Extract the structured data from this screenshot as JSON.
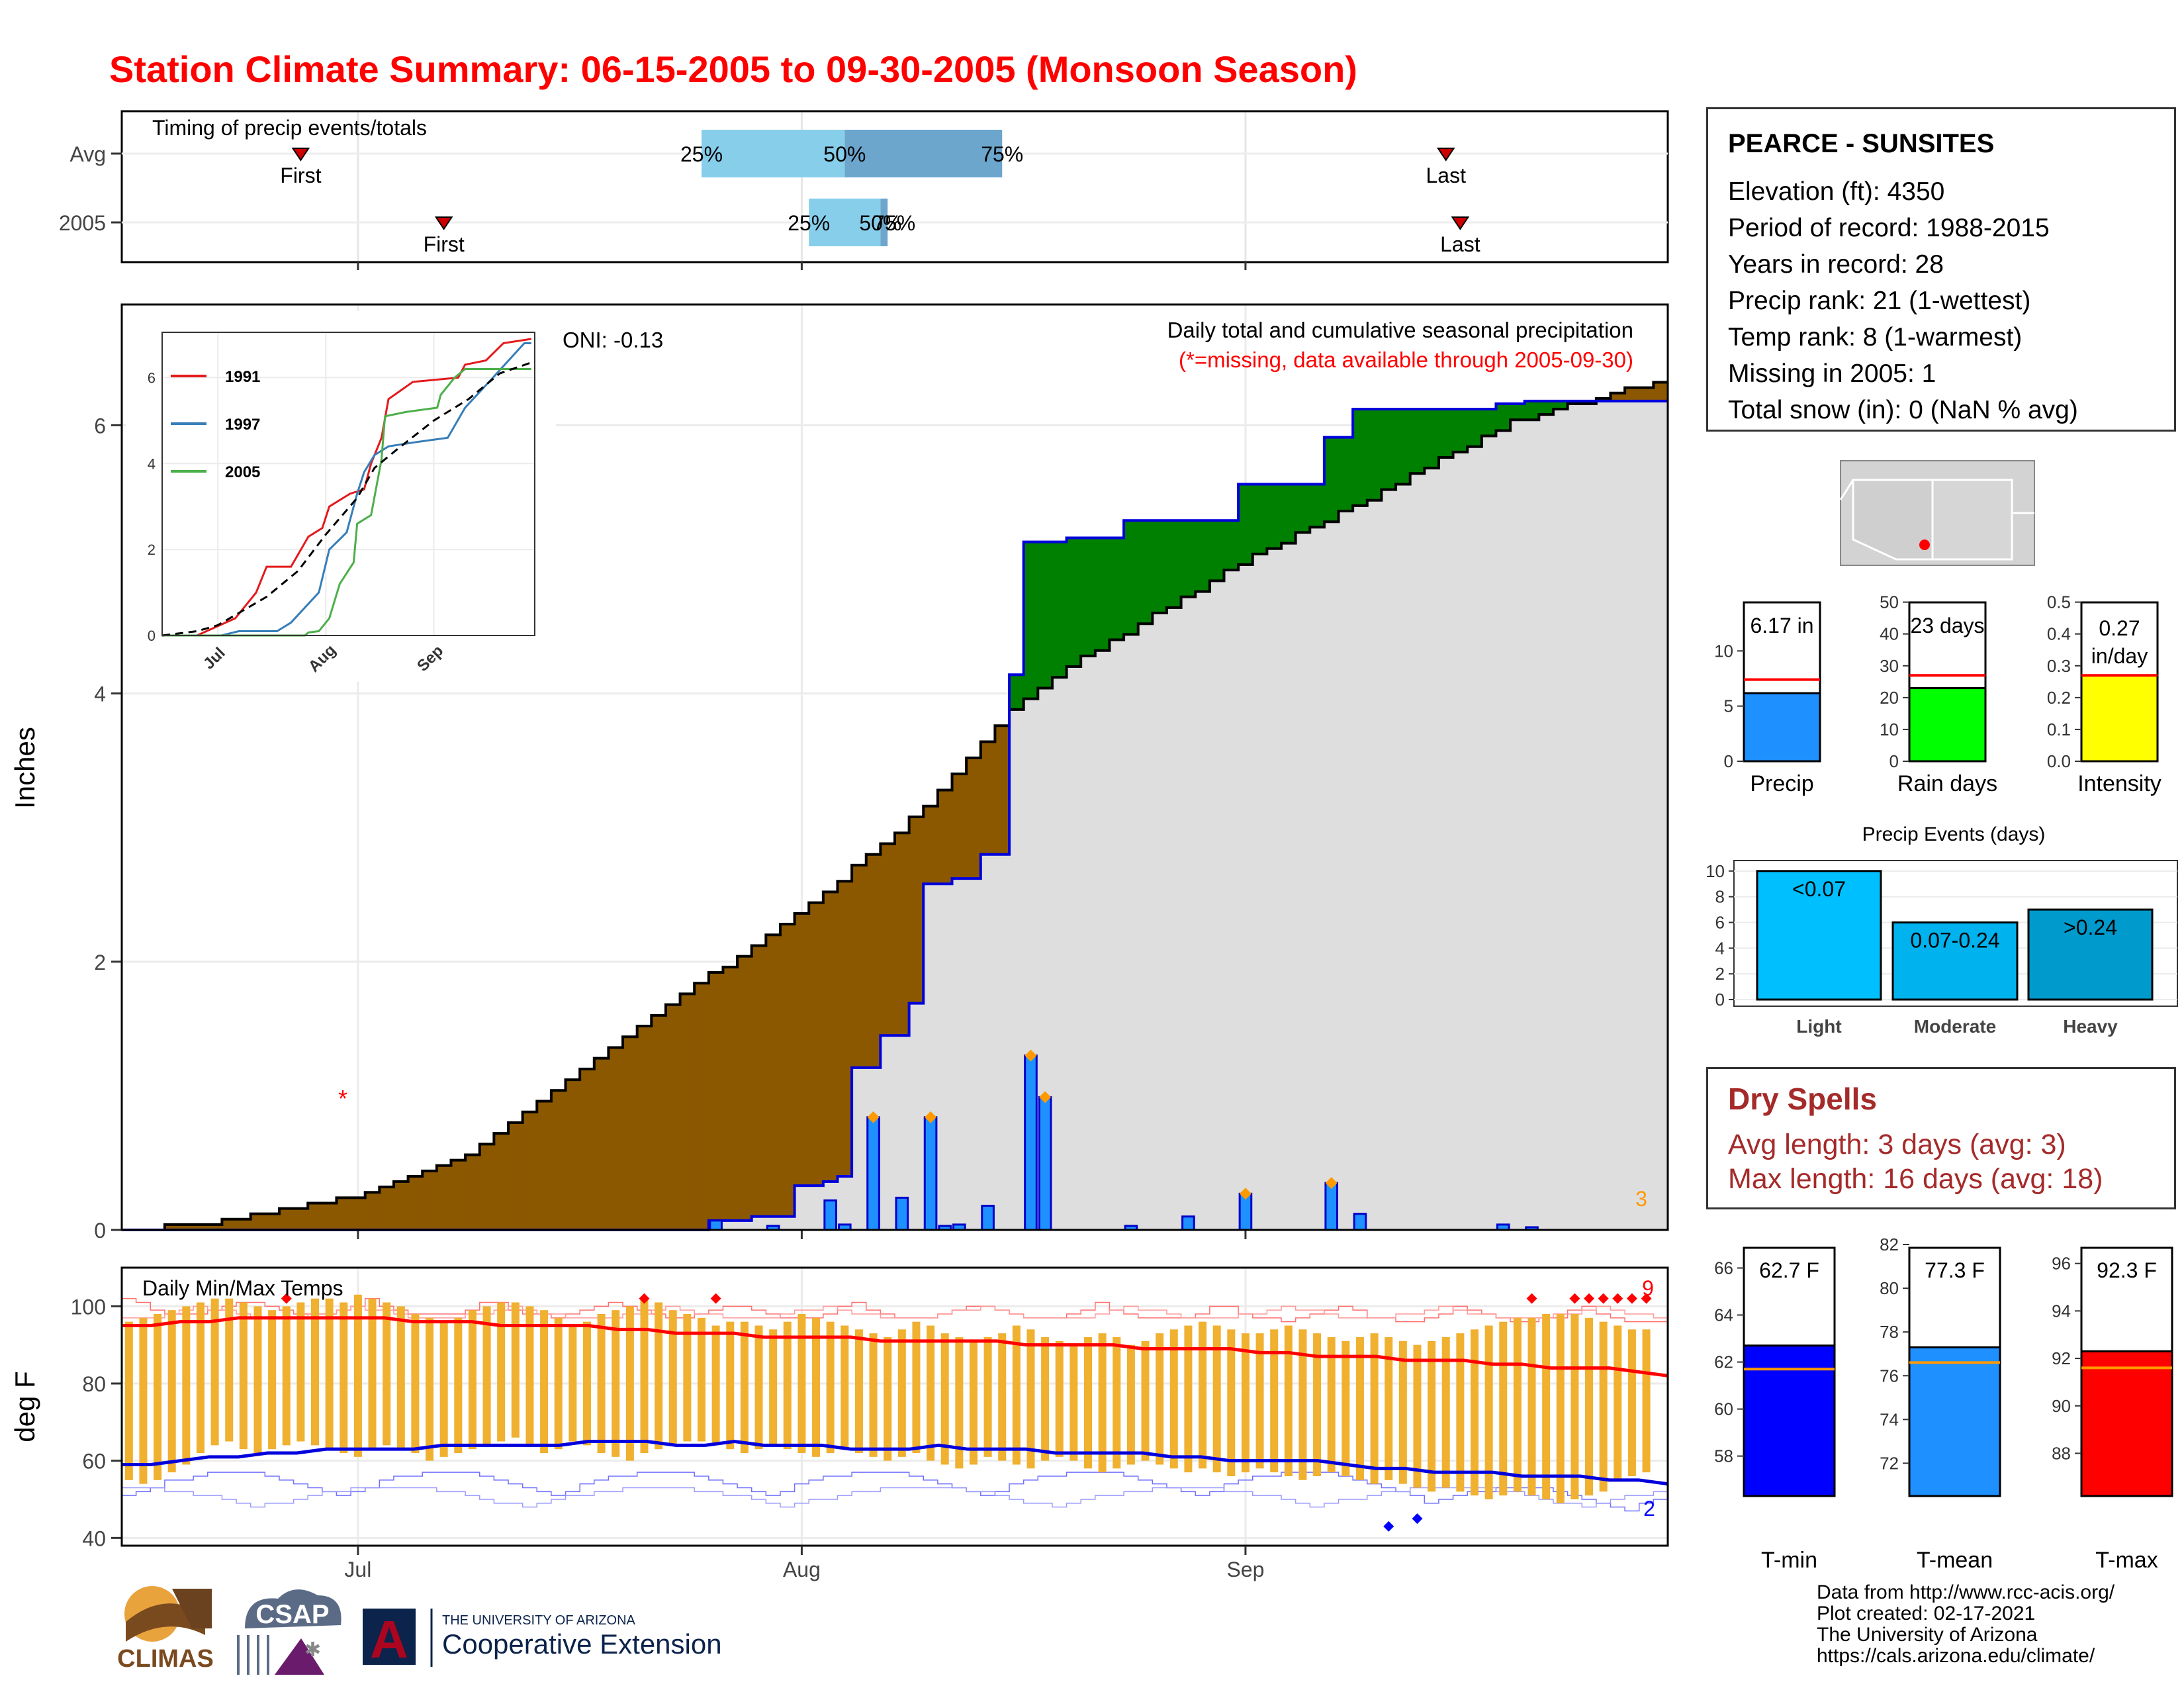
{
  "title": "Station Climate Summary: 06-15-2005 to 09-30-2005 (Monsoon Season)",
  "timing": {
    "label": "Timing of precip events/totals",
    "rows": [
      {
        "name": "Avg",
        "first_doy": 12,
        "last_doy": 92,
        "q25_doy": 40,
        "q50_doy": 50,
        "q75_doy": 61,
        "first_label": "First",
        "last_label": "Last",
        "p25": "25%",
        "p50": "50%",
        "p75": "75%"
      },
      {
        "name": "2005",
        "first_doy": 22,
        "last_doy": 93,
        "q25_doy": 47.5,
        "q50_doy": 52.5,
        "q75_doy": 53,
        "first_label": "First",
        "last_label": "Last",
        "p25": "25%",
        "p50": "50%",
        "p75": "75%"
      }
    ]
  },
  "main_panel": {
    "annotation_title": "Daily total and cumulative seasonal precipitation",
    "annotation_missing": "(*=missing, data available through 2005-09-30)",
    "oni": "ONI: -0.13",
    "ylabel": "Inches",
    "yticks": [
      "0",
      "2",
      "4",
      "6"
    ],
    "corner_count": "3",
    "missing_marker": "*"
  },
  "inset": {
    "legend": [
      {
        "name": "1991",
        "color": "#e41a1c"
      },
      {
        "name": "1997",
        "color": "#377eb8"
      },
      {
        "name": "2005",
        "color": "#4daf4a"
      }
    ],
    "yticks": [
      "0",
      "2",
      "4",
      "6"
    ],
    "xticks": [
      "Jul",
      "Aug",
      "Sep"
    ]
  },
  "temp_panel": {
    "label": "Daily Min/Max Temps",
    "ylabel": "deg F",
    "yticks": [
      "40",
      "60",
      "80",
      "100"
    ],
    "xticks": [
      "Jul",
      "Aug",
      "Sep"
    ],
    "count_max": "9",
    "count_min": "2"
  },
  "station": {
    "name": "PEARCE - SUNSITES",
    "lines": [
      "Elevation (ft): 4350",
      "Period of record: 1988-2015",
      "Years in record: 28",
      "Precip rank: 21 (1-wettest)",
      "Temp rank: 8 (1-warmest)",
      "Missing in 2005: 1",
      "Total snow (in): 0 (NaN % avg)"
    ]
  },
  "summary_bars": [
    {
      "label": "Precip",
      "value_text": "6.17 in",
      "value": 6.17,
      "avg": 7.4,
      "ymax": 15,
      "ticks": [
        "0",
        "5",
        "10"
      ],
      "color": "#1e90ff"
    },
    {
      "label": "Rain days",
      "value_text": "23 days",
      "value": 23,
      "avg": 27,
      "ymax": 52,
      "ticks": [
        "0",
        "10",
        "20",
        "30",
        "40",
        "50"
      ],
      "color": "#00ff00"
    },
    {
      "label": "Intensity",
      "value_text": "0.27 in/day",
      "value_line1": "0.27",
      "value_line2": "in/day",
      "value": 0.27,
      "avg": 0.27,
      "ymax": 0.52,
      "ticks": [
        "0.0",
        "0.1",
        "0.2",
        "0.3",
        "0.4",
        "0.5"
      ],
      "color": "#ffff00"
    }
  ],
  "events": {
    "title": "Precip Events (days)",
    "ticks": [
      "0",
      "2",
      "4",
      "6",
      "8",
      "10"
    ],
    "bars": [
      {
        "label": "Light",
        "value": 10,
        "text": "<0.07",
        "color": "#00bfff"
      },
      {
        "label": "Moderate",
        "value": 6,
        "text": "0.07-0.24",
        "color": "#00b2ee"
      },
      {
        "label": "Heavy",
        "value": 7,
        "text": ">0.24",
        "color": "#009acd"
      }
    ]
  },
  "dry_spells": {
    "title": "Dry Spells",
    "avg_length": "Avg length: 3 days (avg: 3)",
    "max_length": "Max length: 16 days (avg: 18)"
  },
  "temp_bars": [
    {
      "label": "T-min",
      "value_text": "62.7 F",
      "value": 62.7,
      "avg": 61.7,
      "ymin": 56.3,
      "ymax": 67,
      "ticks": [
        "58",
        "60",
        "62",
        "64",
        "66"
      ],
      "color": "#0000ff"
    },
    {
      "label": "T-mean",
      "value_text": "77.3 F",
      "value": 77.3,
      "avg": 76.6,
      "ymin": 70.5,
      "ymax": 82,
      "ticks": [
        "72",
        "74",
        "76",
        "78",
        "80",
        "82"
      ],
      "color": "#1e90ff"
    },
    {
      "label": "T-max",
      "value_text": "92.3 F",
      "value": 92.3,
      "avg": 91.6,
      "ymin": 86.2,
      "ymax": 96.8,
      "ticks": [
        "88",
        "90",
        "92",
        "94",
        "96"
      ],
      "color": "#ff0000"
    }
  ],
  "credits": [
    "Data from http://www.rcc-acis.org/",
    "Plot created: 02-17-2021",
    "The University of Arizona",
    "https://cals.arizona.edu/climate/"
  ],
  "logos": {
    "climas": "CLIMAS",
    "csap": "CSAP",
    "ua_small": "THE UNIVERSITY OF ARIZONA",
    "ua_big": "Cooperative Extension",
    "ua_letter": "A"
  },
  "chart_data": [
    {
      "type": "area",
      "title": "Daily total and cumulative seasonal precipitation",
      "xlabel": "",
      "ylabel": "Inches",
      "x_range": [
        "2005-06-15",
        "2005-09-30"
      ],
      "ylim": [
        0,
        6.9
      ],
      "x_ticks": [
        "Jul",
        "Aug",
        "Sep"
      ],
      "daily_precip_2005": [
        {
          "x": "2005-07-26",
          "y": 0.07
        },
        {
          "x": "2005-07-30",
          "y": 0.03
        },
        {
          "x": "2005-08-03",
          "y": 0.22
        },
        {
          "x": "2005-08-04",
          "y": 0.04
        },
        {
          "x": "2005-08-06",
          "y": 0.84
        },
        {
          "x": "2005-08-08",
          "y": 0.24
        },
        {
          "x": "2005-08-10",
          "y": 0.84
        },
        {
          "x": "2005-08-11",
          "y": 0.03
        },
        {
          "x": "2005-08-12",
          "y": 0.04
        },
        {
          "x": "2005-08-14",
          "y": 0.18
        },
        {
          "x": "2005-08-17",
          "y": 1.3
        },
        {
          "x": "2005-08-18",
          "y": 0.99
        },
        {
          "x": "2005-08-24",
          "y": 0.03
        },
        {
          "x": "2005-08-28",
          "y": 0.1
        },
        {
          "x": "2005-09-01",
          "y": 0.27
        },
        {
          "x": "2005-09-07",
          "y": 0.35
        },
        {
          "x": "2005-09-09",
          "y": 0.12
        },
        {
          "x": "2005-09-19",
          "y": 0.04
        },
        {
          "x": "2005-09-21",
          "y": 0.02
        }
      ],
      "cumulative_2005": [
        {
          "x": "2005-06-15",
          "y": 0
        },
        {
          "x": "2005-07-25",
          "y": 0
        },
        {
          "x": "2005-07-26",
          "y": 0.07
        },
        {
          "x": "2005-07-29",
          "y": 0.1
        },
        {
          "x": "2005-08-01",
          "y": 0.33
        },
        {
          "x": "2005-08-03",
          "y": 0.36
        },
        {
          "x": "2005-08-04",
          "y": 0.4
        },
        {
          "x": "2005-08-05",
          "y": 1.21
        },
        {
          "x": "2005-08-06",
          "y": 1.21
        },
        {
          "x": "2005-08-07",
          "y": 1.45
        },
        {
          "x": "2005-08-09",
          "y": 1.69
        },
        {
          "x": "2005-08-10",
          "y": 2.58
        },
        {
          "x": "2005-08-12",
          "y": 2.62
        },
        {
          "x": "2005-08-14",
          "y": 2.8
        },
        {
          "x": "2005-08-16",
          "y": 4.14
        },
        {
          "x": "2005-08-17",
          "y": 5.13
        },
        {
          "x": "2005-08-20",
          "y": 5.16
        },
        {
          "x": "2005-08-24",
          "y": 5.29
        },
        {
          "x": "2005-09-01",
          "y": 5.56
        },
        {
          "x": "2005-09-07",
          "y": 5.91
        },
        {
          "x": "2005-09-09",
          "y": 6.12
        },
        {
          "x": "2005-09-19",
          "y": 6.16
        },
        {
          "x": "2005-09-21",
          "y": 6.18
        },
        {
          "x": "2005-09-30",
          "y": 6.18
        }
      ],
      "cumulative_average": [
        {
          "x": "2005-06-15",
          "y": 0
        },
        {
          "x": "2005-06-22",
          "y": 0.06
        },
        {
          "x": "2005-07-01",
          "y": 0.24
        },
        {
          "x": "2005-07-10",
          "y": 0.62
        },
        {
          "x": "2005-07-20",
          "y": 1.45
        },
        {
          "x": "2005-08-01",
          "y": 2.35
        },
        {
          "x": "2005-08-10",
          "y": 3.15
        },
        {
          "x": "2005-08-15",
          "y": 3.75
        },
        {
          "x": "2005-08-16",
          "y": 3.88
        },
        {
          "x": "2005-08-20",
          "y": 4.2
        },
        {
          "x": "2005-09-01",
          "y": 4.97
        },
        {
          "x": "2005-09-10",
          "y": 5.45
        },
        {
          "x": "2005-09-20",
          "y": 6.03
        },
        {
          "x": "2005-09-30",
          "y": 6.32
        }
      ]
    },
    {
      "type": "line",
      "title": "",
      "xlabel": "",
      "ylabel": "",
      "ylim": [
        0,
        6.9
      ],
      "x_ticks": [
        "Jul",
        "Aug",
        "Sep"
      ],
      "x_range": [
        "2005-06-15",
        "2005-09-30"
      ],
      "series": [
        {
          "name": "1991",
          "color": "#e41a1c",
          "points": [
            [
              0,
              0
            ],
            [
              10,
              0
            ],
            [
              21,
              0.4
            ],
            [
              27,
              1.0
            ],
            [
              30,
              1.6
            ],
            [
              37,
              1.6
            ],
            [
              42,
              2.3
            ],
            [
              46,
              2.5
            ],
            [
              48,
              3.0
            ],
            [
              54,
              3.3
            ],
            [
              58,
              3.4
            ],
            [
              60,
              4.0
            ],
            [
              63,
              4.6
            ],
            [
              65,
              5.5
            ],
            [
              72,
              5.9
            ],
            [
              85,
              6.0
            ],
            [
              87,
              6.3
            ],
            [
              93,
              6.4
            ],
            [
              98,
              6.8
            ],
            [
              106,
              7.2
            ]
          ]
        },
        {
          "name": "1997",
          "color": "#377eb8",
          "points": [
            [
              0,
              0
            ],
            [
              17,
              0
            ],
            [
              22,
              0.1
            ],
            [
              33,
              0.1
            ],
            [
              37,
              0.3
            ],
            [
              45,
              1.0
            ],
            [
              48,
              2.0
            ],
            [
              53,
              2.4
            ],
            [
              56,
              3.3
            ],
            [
              58,
              3.8
            ],
            [
              61,
              4.2
            ],
            [
              65,
              4.4
            ],
            [
              73,
              4.5
            ],
            [
              82,
              4.6
            ],
            [
              87,
              5.3
            ],
            [
              95,
              6.0
            ],
            [
              104,
              6.8
            ],
            [
              106,
              6.8
            ]
          ]
        },
        {
          "name": "2005",
          "color": "#4daf4a",
          "points": [
            [
              0,
              0
            ],
            [
              41,
              0
            ],
            [
              42,
              0.07
            ],
            [
              45,
              0.1
            ],
            [
              48,
              0.4
            ],
            [
              51,
              1.2
            ],
            [
              53,
              1.45
            ],
            [
              55,
              1.7
            ],
            [
              56,
              2.6
            ],
            [
              60,
              2.8
            ],
            [
              63,
              4.1
            ],
            [
              64,
              5.1
            ],
            [
              70,
              5.2
            ],
            [
              79,
              5.3
            ],
            [
              80,
              5.6
            ],
            [
              84,
              6.0
            ],
            [
              87,
              6.2
            ],
            [
              97,
              6.2
            ],
            [
              99,
              6.2
            ],
            [
              106,
              6.2
            ]
          ]
        },
        {
          "name": "",
          "color": "#000000",
          "dashed": true,
          "points": [
            [
              0,
              0
            ],
            [
              10,
              0.1
            ],
            [
              16,
              0.24
            ],
            [
              30,
              0.9
            ],
            [
              39,
              1.5
            ],
            [
              47,
              2.35
            ],
            [
              56,
              3.2
            ],
            [
              61,
              3.9
            ],
            [
              67,
              4.3
            ],
            [
              78,
              5.0
            ],
            [
              88,
              5.5
            ],
            [
              97,
              6.1
            ],
            [
              106,
              6.35
            ]
          ]
        }
      ]
    },
    {
      "type": "bar",
      "title": "Daily Min/Max Temps",
      "xlabel": "",
      "ylabel": "deg F",
      "ylim": [
        38,
        110
      ],
      "x_ticks": [
        "Jul",
        "Aug",
        "Sep"
      ],
      "x_range": [
        "2005-06-15",
        "2005-09-30"
      ],
      "daily_tmax_2005": [
        96,
        97,
        98,
        99,
        100,
        101,
        102,
        102,
        101,
        100,
        99,
        100,
        101,
        102,
        102,
        101,
        103,
        102,
        101,
        100,
        98,
        97,
        96,
        97,
        99,
        100,
        101,
        101,
        100,
        99,
        97,
        95,
        96,
        98,
        99,
        100,
        102,
        101,
        99,
        98,
        97,
        95,
        96,
        96,
        95,
        94,
        96,
        98,
        97,
        96,
        95,
        94,
        93,
        92,
        94,
        96,
        95,
        93,
        92,
        91,
        92,
        93,
        95,
        94,
        92,
        91,
        90,
        92,
        93,
        92,
        90,
        91,
        93,
        94,
        95,
        96,
        95,
        94,
        93,
        93,
        94,
        95,
        94,
        93,
        92,
        91,
        92,
        93,
        92,
        91,
        90,
        91,
        92,
        93,
        94,
        95,
        96,
        97,
        97,
        98,
        98,
        98,
        97,
        96,
        95,
        94,
        94
      ],
      "daily_tmin_2005": [
        55,
        54,
        55,
        57,
        59,
        62,
        64,
        65,
        63,
        62,
        63,
        64,
        65,
        64,
        63,
        62,
        61,
        63,
        64,
        63,
        62,
        60,
        61,
        62,
        63,
        64,
        65,
        66,
        64,
        62,
        63,
        65,
        64,
        62,
        61,
        60,
        62,
        63,
        64,
        65,
        65,
        64,
        63,
        62,
        63,
        64,
        63,
        62,
        61,
        62,
        63,
        62,
        61,
        60,
        61,
        62,
        60,
        59,
        58,
        59,
        61,
        60,
        59,
        58,
        60,
        61,
        60,
        58,
        57,
        58,
        59,
        60,
        59,
        58,
        57,
        58,
        57,
        56,
        57,
        58,
        57,
        56,
        55,
        56,
        57,
        56,
        55,
        54,
        55,
        54,
        53,
        52,
        53,
        52,
        51,
        50,
        51,
        52,
        51,
        50,
        49,
        50,
        51,
        52,
        55,
        56,
        57
      ],
      "avg_tmax": [
        95,
        95,
        96,
        96,
        97,
        97,
        97,
        97,
        97,
        97,
        96,
        96,
        96,
        95,
        95,
        95,
        95,
        94,
        94,
        93,
        93,
        93,
        92,
        92,
        92,
        92,
        91,
        91,
        91,
        91,
        91,
        90,
        90,
        90,
        90,
        89,
        89,
        89,
        89,
        88,
        88,
        87,
        87,
        87,
        86,
        86,
        86,
        85,
        85,
        84,
        84,
        84,
        83,
        82
      ],
      "avg_tmin": [
        59,
        59,
        60,
        61,
        61,
        62,
        62,
        63,
        63,
        63,
        63,
        64,
        64,
        64,
        64,
        64,
        65,
        65,
        65,
        64,
        64,
        65,
        64,
        64,
        64,
        63,
        63,
        63,
        64,
        63,
        63,
        63,
        62,
        62,
        62,
        62,
        61,
        61,
        60,
        60,
        60,
        60,
        59,
        58,
        58,
        57,
        57,
        57,
        56,
        56,
        56,
        55,
        55,
        54
      ],
      "record_high": 104,
      "record_low": 43
    }
  ]
}
